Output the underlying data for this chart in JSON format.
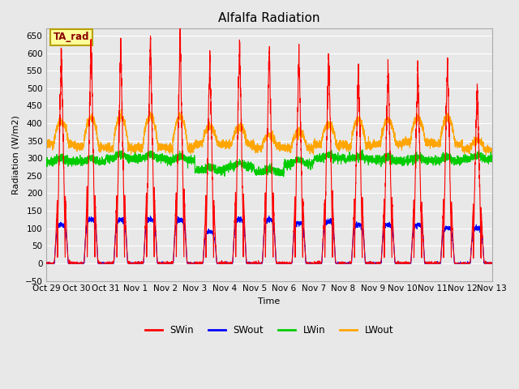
{
  "title": "Alfalfa Radiation",
  "ylabel": "Radiation (W/m2)",
  "xlabel": "Time",
  "ylim": [
    -50,
    670
  ],
  "yticks": [
    -50,
    0,
    50,
    100,
    150,
    200,
    250,
    300,
    350,
    400,
    450,
    500,
    550,
    600,
    650
  ],
  "background_color": "#e8e8e8",
  "plot_bg_color": "#e8e8e8",
  "grid_color": "#ffffff",
  "annotation_text": "TA_rad",
  "annotation_bg": "#ffff99",
  "annotation_border": "#b8a000",
  "legend_items": [
    "SWin",
    "SWout",
    "LWin",
    "LWout"
  ],
  "legend_colors": [
    "#ff0000",
    "#0000ff",
    "#00cc00",
    "#ffa500"
  ],
  "series_colors": {
    "SWin": "#ff0000",
    "SWout": "#0000ff",
    "LWin": "#00cc00",
    "LWout": "#ffa500"
  },
  "num_days": 15,
  "tick_labels": [
    "Oct 29",
    "Oct 30",
    "Oct 31",
    "Nov 1",
    "Nov 2",
    "Nov 3",
    "Nov 4",
    "Nov 5",
    "Nov 6",
    "Nov 7",
    "Nov 8",
    "Nov 9",
    "Nov 10",
    "Nov 11",
    "Nov 12",
    "Nov 13"
  ],
  "figsize": [
    6.4,
    4.8
  ],
  "dpi": 100,
  "SWin_peaks": [
    605,
    635,
    625,
    638,
    645,
    585,
    640,
    625,
    605,
    610,
    575,
    575,
    555,
    575,
    510
  ],
  "SWout_peaks": [
    110,
    125,
    125,
    125,
    125,
    90,
    125,
    125,
    115,
    120,
    110,
    110,
    110,
    100,
    100
  ],
  "LWin_base": [
    290,
    290,
    300,
    300,
    295,
    265,
    275,
    260,
    285,
    300,
    298,
    293,
    293,
    293,
    298
  ],
  "LWout_base": [
    340,
    330,
    330,
    330,
    330,
    340,
    340,
    330,
    330,
    340,
    335,
    340,
    345,
    340,
    325
  ],
  "LWout_peak": [
    405,
    415,
    420,
    420,
    420,
    390,
    390,
    365,
    375,
    395,
    410,
    408,
    415,
    415,
    350
  ]
}
